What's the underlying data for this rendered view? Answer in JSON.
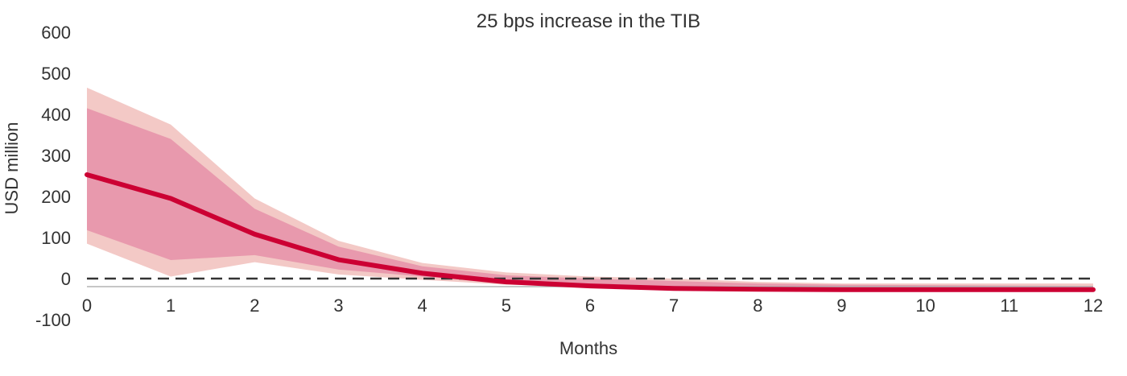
{
  "chart_data": {
    "type": "area",
    "title": "25 bps increase in the TIB",
    "xlabel": "Months",
    "ylabel": "USD million",
    "x": [
      0,
      1,
      2,
      3,
      4,
      5,
      6,
      7,
      8,
      9,
      10,
      11,
      12
    ],
    "xlim": [
      0,
      12
    ],
    "ylim": [
      -100,
      600
    ],
    "yticks": [
      600,
      500,
      400,
      300,
      200,
      100,
      0,
      -100
    ],
    "grid": false,
    "legend": "none",
    "reference_line": {
      "y": 0,
      "style": "dashed",
      "color": "#333333"
    },
    "series": [
      {
        "role": "outer_band",
        "color": "#f3c9c6",
        "upper": [
          465,
          375,
          195,
          92,
          38,
          15,
          5,
          0,
          -8,
          -12,
          -12,
          -12,
          -12
        ],
        "lower": [
          85,
          5,
          40,
          10,
          -3,
          -15,
          -20,
          -25,
          -26,
          -26,
          -26,
          -26,
          -26
        ]
      },
      {
        "role": "inner_band",
        "color": "#e899ad",
        "upper": [
          415,
          340,
          170,
          78,
          30,
          8,
          0,
          -6,
          -12,
          -15,
          -16,
          -17,
          -18
        ],
        "lower": [
          118,
          45,
          57,
          22,
          5,
          -10,
          -17,
          -22,
          -24,
          -24,
          -24,
          -24,
          -24
        ]
      },
      {
        "role": "median",
        "color": "#cc0033",
        "values": [
          253,
          195,
          108,
          46,
          13,
          -8,
          -18,
          -24,
          -26,
          -27,
          -27,
          -27,
          -27
        ]
      }
    ]
  }
}
